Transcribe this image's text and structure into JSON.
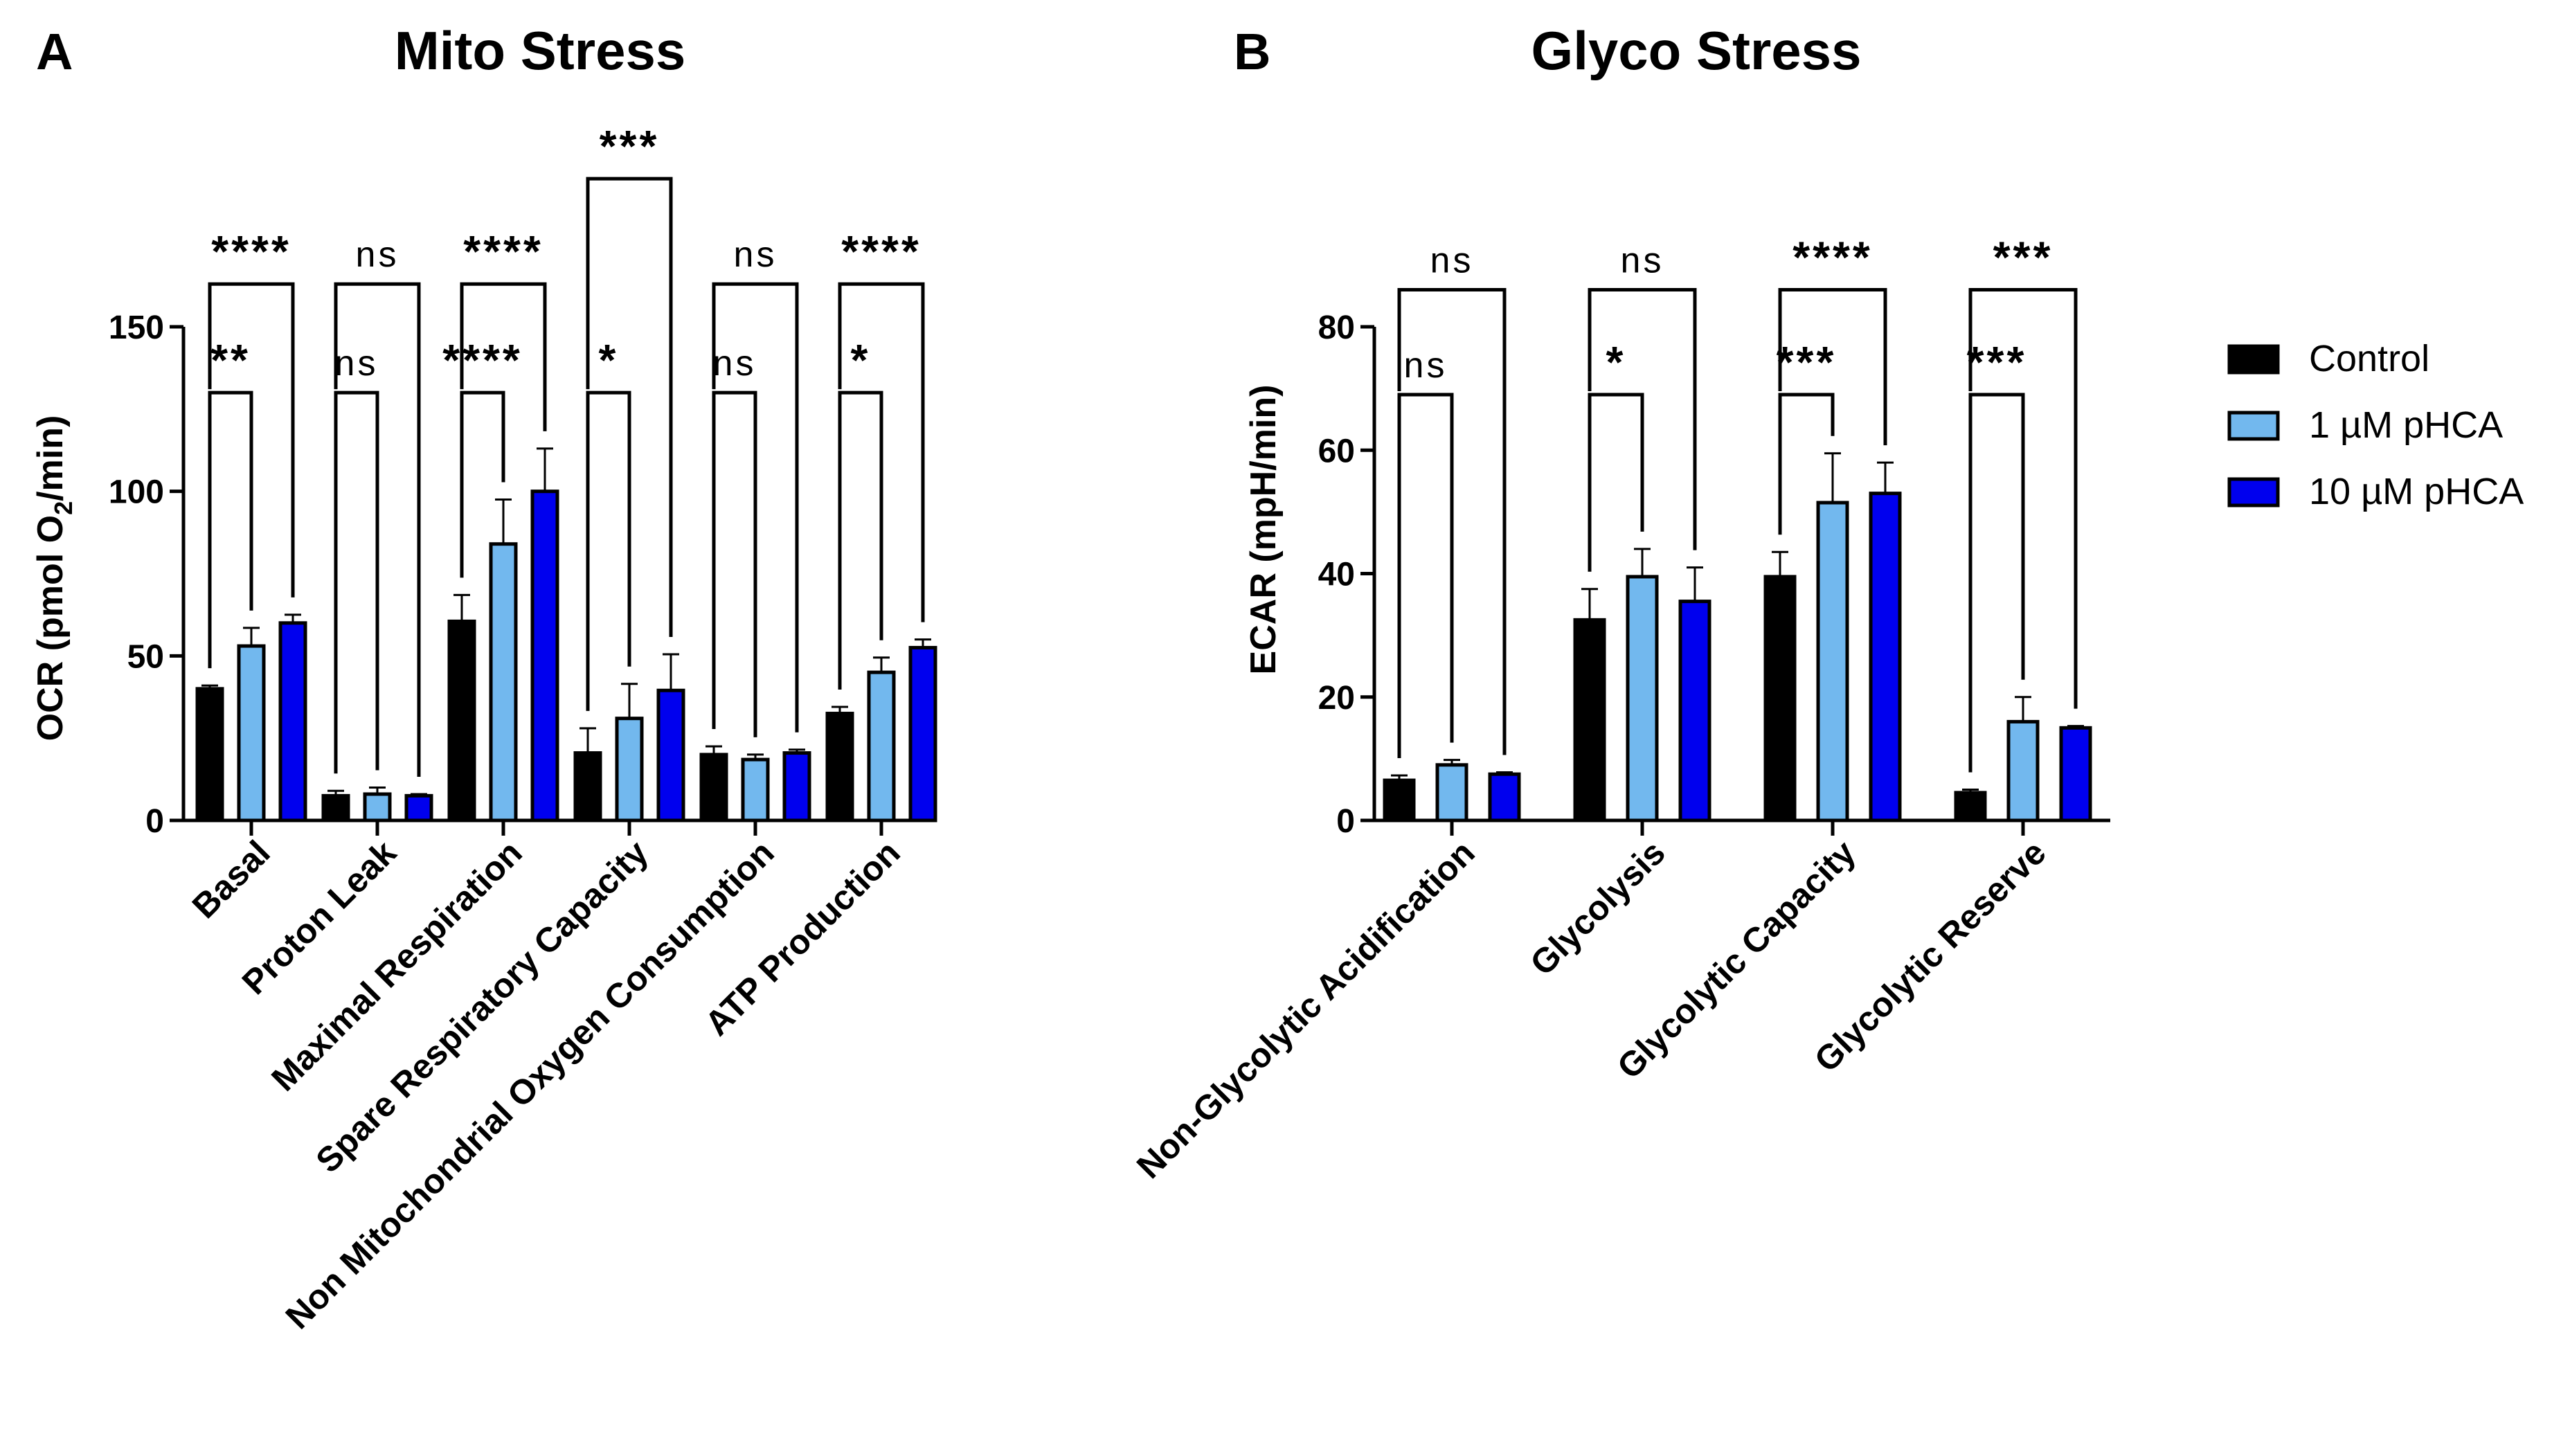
{
  "colors": {
    "control": "#000000",
    "pHCA_1uM": "#72b8ee",
    "pHCA_10uM": "#0000ee",
    "axis": "#000000"
  },
  "legend": {
    "position": "right",
    "items": [
      {
        "label": "Control",
        "color": "#000000"
      },
      {
        "label": "1 µM pHCA",
        "color": "#72b8ee"
      },
      {
        "label": "10 µM pHCA",
        "color": "#0000ee"
      }
    ]
  },
  "chart_data": [
    {
      "panel": "A",
      "type": "bar",
      "title": "Mito Stress",
      "ylabel_main": "OCR (pmol O",
      "ylabel_sub": "2",
      "ylabel_end": "/min)",
      "ylim": [
        0,
        150
      ],
      "yticks": [
        0,
        50,
        100,
        150
      ],
      "grid": false,
      "categories": [
        "Basal",
        "Proton Leak",
        "Maximal Respiration",
        "Spare Respiratory Capacity",
        "Non Mitochondrial Oxygen Consumption",
        "ATP Production"
      ],
      "series": [
        {
          "name": "Control",
          "values": [
            40,
            7.5,
            60.5,
            20.5,
            20,
            32.5
          ],
          "errors": [
            1,
            1.5,
            8,
            7.5,
            2.5,
            2
          ]
        },
        {
          "name": "1 µM pHCA",
          "values": [
            53,
            8,
            84,
            31,
            18.5,
            45
          ],
          "errors": [
            5.5,
            2,
            13.5,
            10.5,
            1.5,
            4.5
          ]
        },
        {
          "name": "10 µM pHCA",
          "values": [
            60,
            7.5,
            100,
            39.5,
            20.5,
            52.5
          ],
          "errors": [
            2.5,
            0.5,
            13,
            11,
            1,
            2.5
          ]
        }
      ],
      "significance": [
        {
          "category": 0,
          "inner": "**",
          "outer": "****",
          "innerTop": 130,
          "outerTop": 163
        },
        {
          "category": 1,
          "inner": "ns",
          "outer": "ns",
          "innerTop": 130,
          "outerTop": 163
        },
        {
          "category": 2,
          "inner": "****",
          "outer": "****",
          "innerTop": 130,
          "outerTop": 163
        },
        {
          "category": 3,
          "inner": "*",
          "outer": "***",
          "innerTop": 130,
          "outerTop": 195
        },
        {
          "category": 4,
          "inner": "ns",
          "outer": "ns",
          "innerTop": 130,
          "outerTop": 163
        },
        {
          "category": 5,
          "inner": "*",
          "outer": "****",
          "innerTop": 130,
          "outerTop": 163
        }
      ]
    },
    {
      "panel": "B",
      "type": "bar",
      "title": "Glyco Stress",
      "ylabel_main": "ECAR (mpH/min)",
      "ylim": [
        0,
        80
      ],
      "yticks": [
        0,
        20,
        40,
        60,
        80
      ],
      "grid": false,
      "categories": [
        "Non-Glycolytic Acidification",
        "Glycolysis",
        "Glycolytic Capacity",
        "Glycolytic Reserve"
      ],
      "series": [
        {
          "name": "Control",
          "values": [
            6.5,
            32.5,
            39.5,
            4.5
          ],
          "errors": [
            0.8,
            5,
            4,
            0.5
          ]
        },
        {
          "name": "1 µM pHCA",
          "values": [
            9,
            39.5,
            51.5,
            16
          ],
          "errors": [
            0.8,
            4.5,
            8,
            4
          ]
        },
        {
          "name": "10 µM pHCA",
          "values": [
            7.5,
            35.5,
            53,
            15
          ],
          "errors": [
            0.3,
            5.5,
            5,
            0.3
          ]
        }
      ],
      "significance": [
        {
          "category": 0,
          "inner": "ns",
          "outer": "ns",
          "innerTop": 69,
          "outerTop": 86
        },
        {
          "category": 1,
          "inner": "*",
          "outer": "ns",
          "innerTop": 69,
          "outerTop": 86
        },
        {
          "category": 2,
          "inner": "***",
          "outer": "****",
          "innerTop": 69,
          "outerTop": 86
        },
        {
          "category": 3,
          "inner": "***",
          "outer": "***",
          "innerTop": 69,
          "outerTop": 86
        }
      ]
    }
  ]
}
